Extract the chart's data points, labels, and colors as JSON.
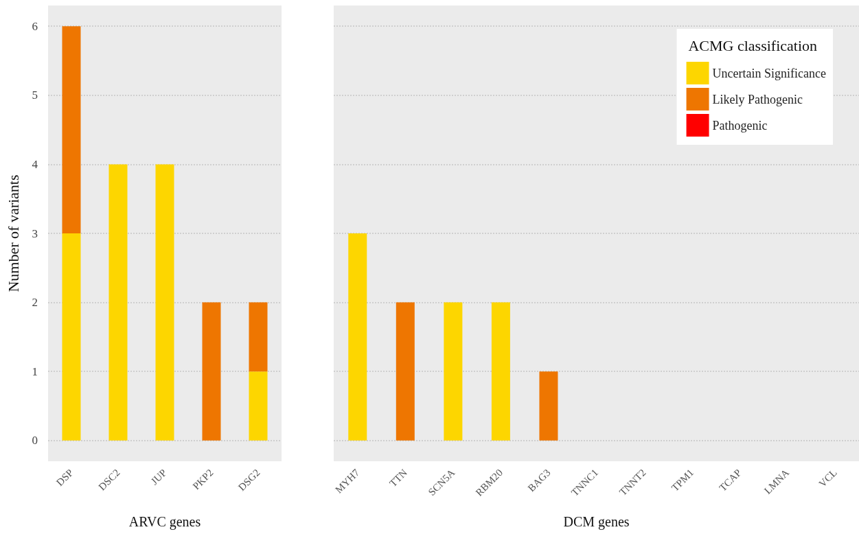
{
  "chart_data": [
    {
      "type": "bar",
      "xlabel": "ARVC genes",
      "ylabel": "Number of variants",
      "categories": [
        "DSP",
        "DSC2",
        "JUP",
        "PKP2",
        "DSG2"
      ],
      "stacked": true,
      "series": [
        {
          "color": "#fdd600",
          "values": [
            3,
            4,
            4,
            0,
            1
          ]
        },
        {
          "color": "#ee7601",
          "values": [
            3,
            0,
            0,
            2,
            1
          ]
        },
        {
          "color": "#ff0000",
          "values": [
            0,
            0,
            0,
            0,
            0
          ]
        }
      ],
      "ylim": [
        -0.3,
        6.3
      ],
      "yticks": [
        0,
        1,
        2,
        3,
        4,
        5,
        6
      ],
      "grid": "y",
      "legend": false
    },
    {
      "type": "bar",
      "xlabel": "DCM genes",
      "legend_title": "ACMG classification",
      "categories": [
        "MYH7",
        "TTN",
        "SCN5A",
        "RBM20",
        "BAG3",
        "TNNC1",
        "TNNT2",
        "TPM1",
        "TCAP",
        "LMNA",
        "VCL"
      ],
      "stacked": true,
      "series": [
        {
          "name": "Uncertain Significance",
          "color": "#fdd600",
          "values": [
            3,
            0,
            2,
            2,
            0,
            0,
            0,
            0,
            0,
            0,
            0
          ]
        },
        {
          "name": "Likely Pathogenic",
          "color": "#ee7601",
          "values": [
            0,
            2,
            0,
            0,
            1,
            0,
            0,
            0,
            0,
            0,
            0
          ]
        },
        {
          "name": "Pathogenic",
          "color": "#ff0000",
          "values": [
            0,
            0,
            0,
            0,
            0,
            0,
            0,
            0,
            0,
            0,
            0
          ]
        }
      ],
      "ylim": [
        -0.3,
        6.3
      ],
      "yticks": [
        0,
        1,
        2,
        3,
        4,
        5,
        6
      ],
      "grid": "y",
      "legend": "top right",
      "tick_labels": "x"
    }
  ]
}
